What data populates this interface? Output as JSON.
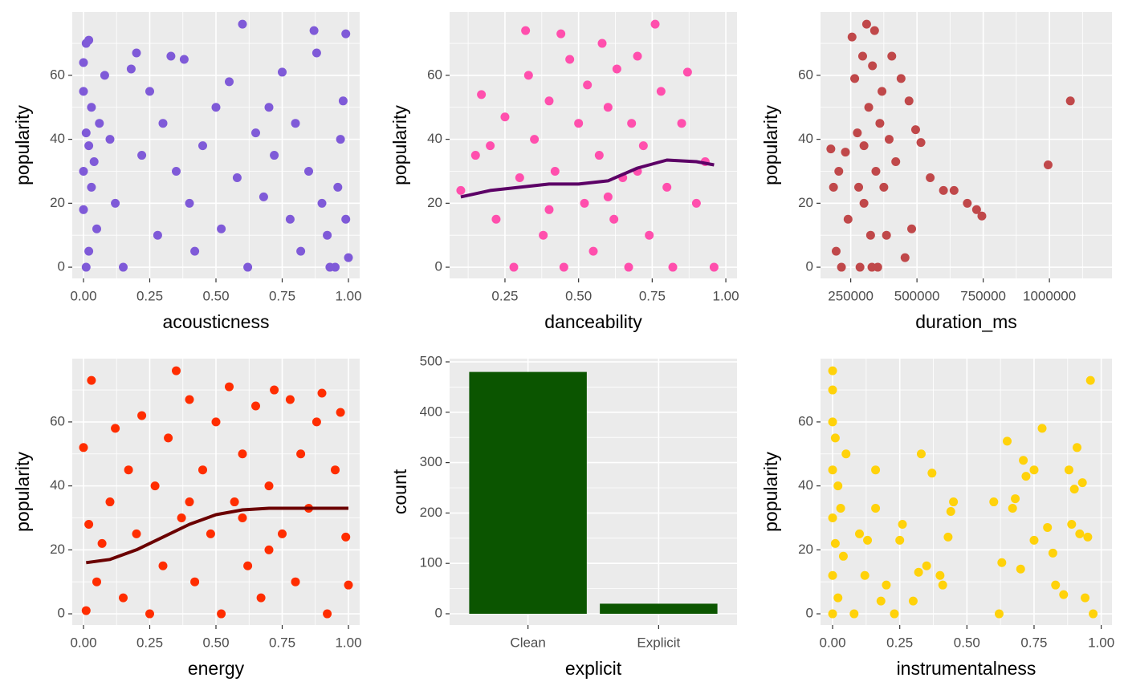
{
  "chart_data": [
    {
      "type": "scatter",
      "x_label": "acousticness",
      "y_label": "popularity",
      "color": "#7f5ad8",
      "grid": true,
      "xlim": [
        -0.0424,
        1.0424
      ],
      "ylim": [
        -3.5,
        79.8
      ],
      "xticks": [
        {
          "value": 0,
          "label": "0.00"
        },
        {
          "value": 0.25,
          "label": "0.25"
        },
        {
          "value": 0.5,
          "label": "0.50"
        },
        {
          "value": 0.75,
          "label": "0.75"
        },
        {
          "value": 1,
          "label": "1.00"
        }
      ],
      "yticks": [
        0,
        20,
        40,
        60
      ],
      "x": [
        0.0,
        0.01,
        0.02,
        0.0,
        0.03,
        0.01,
        0.02,
        0.0,
        0.04,
        0.03,
        0.0,
        0.05,
        0.02,
        0.01,
        0.06,
        0.08,
        0.1,
        0.12,
        0.15,
        0.18,
        0.2,
        0.22,
        0.25,
        0.28,
        0.3,
        0.33,
        0.35,
        0.38,
        0.4,
        0.42,
        0.45,
        0.5,
        0.52,
        0.55,
        0.58,
        0.6,
        0.62,
        0.65,
        0.68,
        0.7,
        0.72,
        0.75,
        0.78,
        0.8,
        0.82,
        0.85,
        0.87,
        0.88,
        0.9,
        0.92,
        0.95,
        0.97,
        0.98,
        0.99,
        1.0,
        0.96,
        0.93,
        0.99
      ],
      "values": [
        64,
        70,
        71,
        55,
        50,
        42,
        38,
        30,
        33,
        25,
        18,
        12,
        5,
        0,
        45,
        60,
        40,
        20,
        0,
        62,
        67,
        35,
        55,
        10,
        45,
        66,
        30,
        65,
        20,
        5,
        38,
        50,
        12,
        58,
        28,
        76,
        0,
        42,
        22,
        50,
        35,
        61,
        15,
        45,
        5,
        30,
        74,
        67,
        20,
        10,
        0,
        40,
        52,
        73,
        3,
        25,
        0,
        15
      ]
    },
    {
      "type": "scatter",
      "x_label": "danceability",
      "y_label": "popularity",
      "color": "#ff4fad",
      "grid": true,
      "xlim": [
        0.062,
        1.038
      ],
      "ylim": [
        -3.5,
        79.8
      ],
      "xticks": [
        {
          "value": 0.25,
          "label": "0.25"
        },
        {
          "value": 0.5,
          "label": "0.50"
        },
        {
          "value": 0.75,
          "label": "0.75"
        },
        {
          "value": 1,
          "label": "1.00"
        }
      ],
      "yticks": [
        0,
        20,
        40,
        60
      ],
      "x": [
        0.1,
        0.15,
        0.17,
        0.2,
        0.22,
        0.25,
        0.28,
        0.3,
        0.32,
        0.33,
        0.35,
        0.38,
        0.4,
        0.42,
        0.44,
        0.45,
        0.47,
        0.5,
        0.52,
        0.53,
        0.55,
        0.57,
        0.58,
        0.6,
        0.62,
        0.63,
        0.65,
        0.67,
        0.68,
        0.7,
        0.72,
        0.74,
        0.76,
        0.78,
        0.8,
        0.82,
        0.85,
        0.87,
        0.9,
        0.93,
        0.96,
        0.7,
        0.6,
        0.4
      ],
      "values": [
        24,
        35,
        54,
        38,
        15,
        47,
        0,
        28,
        74,
        60,
        40,
        10,
        52,
        30,
        73,
        0,
        65,
        45,
        20,
        57,
        5,
        35,
        70,
        50,
        15,
        62,
        28,
        0,
        45,
        66,
        38,
        10,
        76,
        55,
        25,
        0,
        45,
        61,
        20,
        33,
        0,
        30,
        22,
        18
      ],
      "trend": {
        "color": "#5c0066",
        "x": [
          0.1,
          0.2,
          0.3,
          0.4,
          0.5,
          0.6,
          0.7,
          0.8,
          0.9,
          0.96
        ],
        "values": [
          22,
          24,
          25,
          26,
          26,
          27,
          31,
          33.5,
          33,
          32
        ]
      }
    },
    {
      "type": "scatter",
      "x_label": "duration_ms",
      "y_label": "popularity",
      "color": "#c0484a",
      "grid": true,
      "xlim": [
        136000,
        1236000
      ],
      "ylim": [
        -3.5,
        79.8
      ],
      "xticks": [
        250000,
        500000,
        750000,
        1000000
      ],
      "yticks": [
        0,
        20,
        40,
        60
      ],
      "x": [
        175000,
        185000,
        195000,
        205000,
        215000,
        230000,
        240000,
        255000,
        265000,
        275000,
        285000,
        295000,
        300000,
        310000,
        318000,
        325000,
        332000,
        340000,
        345000,
        352000,
        360000,
        368000,
        375000,
        385000,
        395000,
        405000,
        420000,
        440000,
        455000,
        470000,
        480000,
        495000,
        515000,
        550000,
        600000,
        640000,
        690000,
        725000,
        745000,
        995000,
        1079000,
        300000,
        280000,
        330000
      ],
      "values": [
        37,
        25,
        5,
        30,
        0,
        36,
        15,
        72,
        59,
        42,
        0,
        66,
        20,
        76,
        50,
        10,
        63,
        74,
        30,
        0,
        45,
        55,
        25,
        10,
        40,
        66,
        33,
        59,
        3,
        52,
        12,
        43,
        39,
        28,
        24,
        24,
        20,
        18,
        16,
        32,
        52,
        38,
        25,
        0
      ]
    },
    {
      "type": "scatter",
      "x_label": "energy",
      "y_label": "popularity",
      "color": "#ff2d00",
      "grid": true,
      "xlim": [
        -0.0424,
        1.0424
      ],
      "ylim": [
        -3.5,
        79.8
      ],
      "xticks": [
        {
          "value": 0,
          "label": "0.00"
        },
        {
          "value": 0.25,
          "label": "0.25"
        },
        {
          "value": 0.5,
          "label": "0.50"
        },
        {
          "value": 0.75,
          "label": "0.75"
        },
        {
          "value": 1,
          "label": "1.00"
        }
      ],
      "yticks": [
        0,
        20,
        40,
        60
      ],
      "x": [
        0.0,
        0.01,
        0.02,
        0.03,
        0.05,
        0.07,
        0.1,
        0.12,
        0.15,
        0.17,
        0.2,
        0.22,
        0.25,
        0.27,
        0.3,
        0.32,
        0.35,
        0.37,
        0.4,
        0.42,
        0.45,
        0.48,
        0.5,
        0.52,
        0.55,
        0.57,
        0.6,
        0.62,
        0.65,
        0.67,
        0.7,
        0.72,
        0.75,
        0.78,
        0.8,
        0.82,
        0.85,
        0.88,
        0.9,
        0.92,
        0.95,
        0.97,
        0.99,
        1.0,
        0.6,
        0.4,
        0.7
      ],
      "values": [
        52,
        1,
        28,
        73,
        10,
        22,
        35,
        58,
        5,
        45,
        25,
        62,
        0,
        40,
        15,
        55,
        76,
        30,
        67,
        10,
        45,
        25,
        60,
        0,
        71,
        35,
        50,
        15,
        65,
        5,
        40,
        70,
        25,
        67,
        10,
        50,
        33,
        60,
        69,
        0,
        45,
        63,
        24,
        9,
        30,
        35,
        20
      ],
      "trend": {
        "color": "#6b0000",
        "x": [
          0.01,
          0.1,
          0.2,
          0.3,
          0.4,
          0.5,
          0.6,
          0.7,
          0.8,
          0.9,
          1.0
        ],
        "values": [
          16,
          17,
          20,
          24,
          28,
          31,
          32.5,
          33,
          33,
          33,
          33
        ]
      }
    },
    {
      "type": "bar",
      "x_label": "explicit",
      "y_label": "count",
      "color": "#0b5500",
      "grid": true,
      "categories": [
        "Clean",
        "Explicit"
      ],
      "values": [
        480,
        20
      ],
      "ylim": [
        -22.3,
        506.4
      ],
      "yticks": [
        0,
        100,
        200,
        300,
        400,
        500
      ]
    },
    {
      "type": "scatter",
      "x_label": "instrumentalness",
      "y_label": "popularity",
      "color": "#ffd20a",
      "grid": true,
      "xlim": [
        -0.045,
        1.04
      ],
      "ylim": [
        -3.5,
        79.8
      ],
      "xticks": [
        {
          "value": 0,
          "label": "0.00"
        },
        {
          "value": 0.25,
          "label": "0.25"
        },
        {
          "value": 0.5,
          "label": "0.50"
        },
        {
          "value": 0.75,
          "label": "0.75"
        },
        {
          "value": 1,
          "label": "1.00"
        }
      ],
      "yticks": [
        0,
        20,
        40,
        60
      ],
      "x": [
        0.0,
        0.0,
        0.0,
        0.01,
        0.0,
        0.02,
        0.0,
        0.01,
        0.0,
        0.02,
        0.0,
        0.03,
        0.04,
        0.05,
        0.08,
        0.1,
        0.12,
        0.13,
        0.16,
        0.16,
        0.18,
        0.2,
        0.23,
        0.25,
        0.26,
        0.3,
        0.32,
        0.33,
        0.35,
        0.37,
        0.4,
        0.41,
        0.43,
        0.44,
        0.45,
        0.6,
        0.62,
        0.63,
        0.65,
        0.67,
        0.68,
        0.7,
        0.71,
        0.72,
        0.75,
        0.75,
        0.78,
        0.8,
        0.82,
        0.83,
        0.86,
        0.88,
        0.89,
        0.9,
        0.91,
        0.92,
        0.93,
        0.95,
        0.96,
        0.97,
        0.94
      ],
      "values": [
        76,
        70,
        60,
        55,
        45,
        40,
        30,
        22,
        12,
        5,
        0,
        33,
        18,
        50,
        0,
        25,
        12,
        23,
        45,
        33,
        4,
        9,
        0,
        23,
        28,
        4,
        13,
        50,
        15,
        44,
        12,
        9,
        24,
        32,
        35,
        35,
        0,
        16,
        54,
        33,
        36,
        14,
        48,
        43,
        45,
        23,
        58,
        27,
        19,
        9,
        6,
        45,
        28,
        39,
        52,
        25,
        41,
        24,
        73,
        0,
        5
      ]
    }
  ]
}
